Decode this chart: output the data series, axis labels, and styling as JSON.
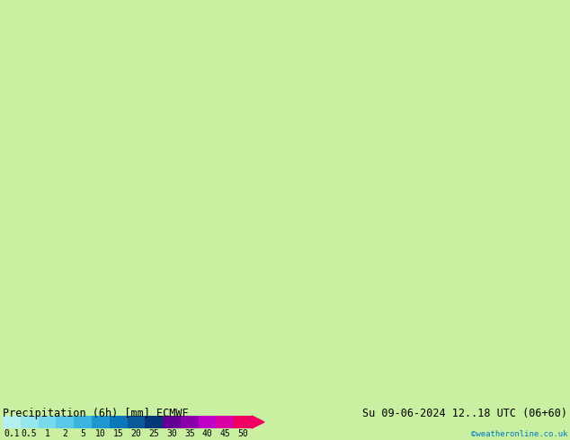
{
  "title_left": "Precipitation (6h) [mm] ECMWF",
  "title_right": "Su 09-06-2024 12..18 UTC (06+60)",
  "credit": "©weatheronline.co.uk",
  "colorbar_values": [
    "0.1",
    "0.5",
    "1",
    "2",
    "5",
    "10",
    "15",
    "20",
    "25",
    "30",
    "35",
    "40",
    "45",
    "50"
  ],
  "colorbar_colors": [
    "#b4f0f0",
    "#96e6ee",
    "#78d8ec",
    "#5ac8e8",
    "#3cb4e0",
    "#1e96d0",
    "#0a78b8",
    "#08589a",
    "#063878",
    "#640096",
    "#8c00aa",
    "#c000c8",
    "#d800a0",
    "#f00060"
  ],
  "background_color": "#c8f0a0",
  "legend_bg": "#c8f0a0",
  "title_fontsize": 8.5,
  "credit_color": "#0078c8",
  "label_fontsize": 7,
  "fig_width": 6.34,
  "fig_height": 4.9,
  "dpi": 100
}
